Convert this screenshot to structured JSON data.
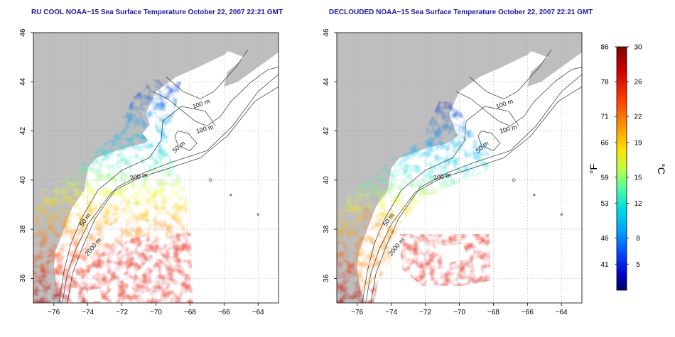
{
  "panels": [
    {
      "title": "RU COOL NOAA−15 Sea Surface Temperature October 22, 2007 22:21 GMT",
      "variant": "raw"
    },
    {
      "title": "DECLOUDED NOAA−15 Sea Surface Temperature October 22, 2007 22:21 GMT",
      "variant": "declouded"
    }
  ],
  "axes": {
    "lon_range": [
      -77.2,
      -62.8
    ],
    "lat_range": [
      35.0,
      46.0
    ],
    "x_ticks": [
      -76,
      -74,
      -72,
      -70,
      -68,
      -66,
      -64
    ],
    "y_ticks": [
      36,
      38,
      40,
      42,
      44,
      46
    ],
    "x_tick_labels": [
      "−76",
      "−74",
      "−72",
      "−70",
      "−68",
      "−66",
      "−64"
    ],
    "y_tick_labels": [
      "36",
      "38",
      "40",
      "42",
      "44",
      "46"
    ],
    "grid": "dotted"
  },
  "contour_labels": [
    "100 m",
    "100 m",
    "50 m",
    "200 m",
    "50 m",
    "2000 m"
  ],
  "colorbar": {
    "fahrenheit_label": "°F",
    "celsius_label": "°C",
    "fahrenheit_ticks": [
      "86",
      "78",
      "71",
      "66",
      "59",
      "53",
      "46",
      "41"
    ],
    "celsius_ticks": [
      "30",
      "26",
      "22",
      "19",
      "15",
      "12",
      "8",
      "5"
    ],
    "celsius_values": [
      30,
      26,
      22,
      19,
      15,
      12,
      8,
      5
    ],
    "range_c": [
      2,
      30
    ],
    "colors": [
      "#800000",
      "#d00000",
      "#ff3000",
      "#ff8000",
      "#ffd000",
      "#d8ff20",
      "#60ff90",
      "#00e0e0",
      "#00a0ff",
      "#0040ff",
      "#0000c0",
      "#00006a"
    ]
  },
  "colors": {
    "land": "#bebebe",
    "title": "#1a1aa0",
    "contour": "#333333"
  }
}
